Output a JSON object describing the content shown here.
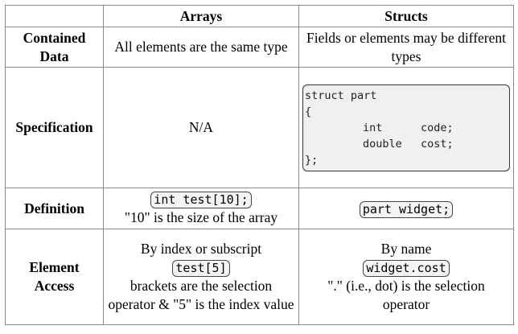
{
  "table": {
    "headers": [
      "",
      "Arrays",
      "Structs"
    ],
    "rows": {
      "contained_data": {
        "label": "Contained Data",
        "arrays": "All elements are the same type",
        "structs": "Fields or elements may be different types"
      },
      "specification": {
        "label": "Specification",
        "arrays": "N/A",
        "structs_code": {
          "line1": "struct part",
          "open_brace": "{",
          "fields": [
            {
              "type": "int",
              "name": "code;"
            },
            {
              "type": "double",
              "name": "cost;"
            }
          ],
          "close_brace": "};"
        }
      },
      "definition": {
        "label": "Definition",
        "arrays_code": "int test[10];",
        "arrays_note": "\"10\" is the size of the array",
        "structs_code": "part widget;"
      },
      "element_access": {
        "label": "Element Access",
        "arrays_intro": "By index or subscript",
        "arrays_code": "test[5]",
        "arrays_note": "brackets are the selection operator & \"5\" is the index value",
        "structs_intro": "By name",
        "structs_code": "widget.cost",
        "structs_note": "\".\" (i.e., dot) is the selection operator"
      }
    }
  }
}
